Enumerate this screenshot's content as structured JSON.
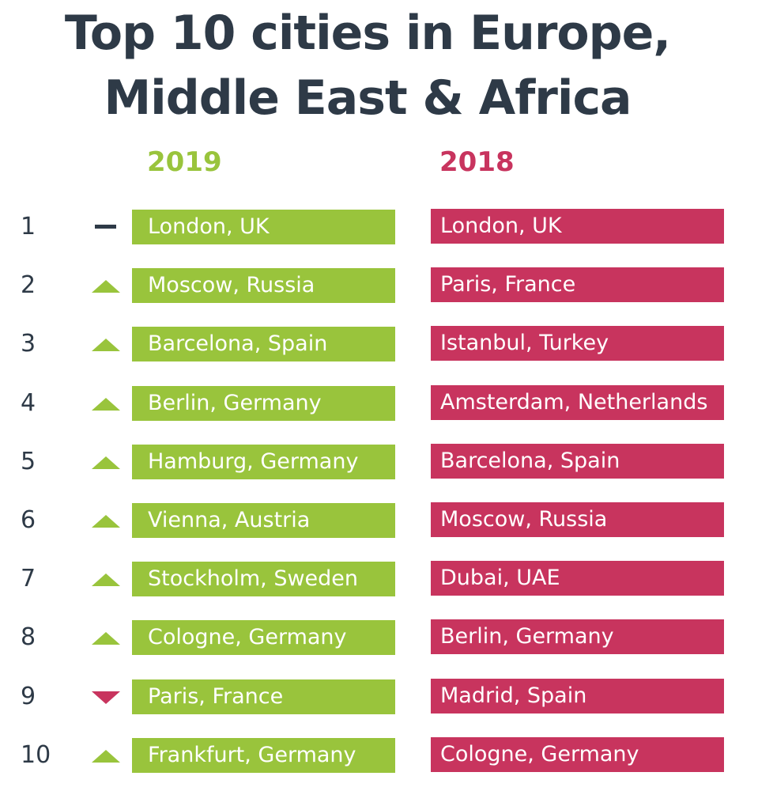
{
  "title": {
    "line1": "Top 10 cities in Europe,",
    "line2": "Middle East & Africa"
  },
  "columns": {
    "y2019": "2019",
    "y2018": "2018"
  },
  "colors": {
    "green": "#99c43c",
    "pink": "#c8345e",
    "dark": "#2e3a47"
  },
  "rows": [
    {
      "rank": "1",
      "change": "same",
      "change_icon": "dash-icon",
      "city2019": "London, UK",
      "city2018": "London, UK"
    },
    {
      "rank": "2",
      "change": "up",
      "change_icon": "triangle-up-icon",
      "city2019": "Moscow, Russia",
      "city2018": "Paris, France"
    },
    {
      "rank": "3",
      "change": "up",
      "change_icon": "triangle-up-icon",
      "city2019": "Barcelona, Spain",
      "city2018": "Istanbul, Turkey"
    },
    {
      "rank": "4",
      "change": "up",
      "change_icon": "triangle-up-icon",
      "city2019": "Berlin, Germany",
      "city2018": "Amsterdam, Netherlands"
    },
    {
      "rank": "5",
      "change": "up",
      "change_icon": "triangle-up-icon",
      "city2019": "Hamburg, Germany",
      "city2018": "Barcelona, Spain"
    },
    {
      "rank": "6",
      "change": "up",
      "change_icon": "triangle-up-icon",
      "city2019": "Vienna, Austria",
      "city2018": "Moscow, Russia"
    },
    {
      "rank": "7",
      "change": "up",
      "change_icon": "triangle-up-icon",
      "city2019": "Stockholm, Sweden",
      "city2018": "Dubai, UAE"
    },
    {
      "rank": "8",
      "change": "up",
      "change_icon": "triangle-up-icon",
      "city2019": "Cologne, Germany",
      "city2018": "Berlin, Germany"
    },
    {
      "rank": "9",
      "change": "down",
      "change_icon": "triangle-down-icon",
      "city2019": "Paris, France",
      "city2018": "Madrid, Spain"
    },
    {
      "rank": "10",
      "change": "up",
      "change_icon": "triangle-up-icon",
      "city2019": "Frankfurt, Germany",
      "city2018": "Cologne, Germany"
    }
  ]
}
